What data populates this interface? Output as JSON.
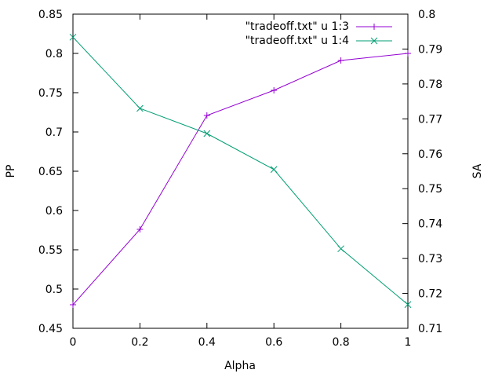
{
  "chart_data": {
    "type": "line",
    "title": "",
    "xlabel": "Alpha",
    "ylabel": "PP",
    "y2label": "SA",
    "xlim": [
      0,
      1
    ],
    "ylim": [
      0.45,
      0.85
    ],
    "y2lim": [
      0.71,
      0.8
    ],
    "x_ticks": [
      "0",
      "0.2",
      "0.4",
      "0.6",
      "0.8",
      "1"
    ],
    "y_ticks": [
      "0.45",
      "0.5",
      "0.55",
      "0.6",
      "0.65",
      "0.7",
      "0.75",
      "0.8",
      "0.85"
    ],
    "y2_ticks": [
      "0.71",
      "0.72",
      "0.73",
      "0.74",
      "0.75",
      "0.76",
      "0.77",
      "0.78",
      "0.79",
      "0.8"
    ],
    "grid": false,
    "legend_position": "top-right",
    "x": [
      0,
      0.2,
      0.4,
      0.6,
      0.8,
      1
    ],
    "series": [
      {
        "name": "\"tradeoff.txt\" u 1:3",
        "axis": "left",
        "marker": "plus",
        "color": "#9400d3",
        "values": [
          0.48,
          0.576,
          0.721,
          0.753,
          0.791,
          0.8
        ]
      },
      {
        "name": "\"tradeoff.txt\" u 1:4",
        "axis": "right",
        "marker": "cross",
        "color": "#009e73",
        "values": [
          0.7934,
          0.773,
          0.7658,
          0.7555,
          0.7328,
          0.7168
        ]
      }
    ]
  }
}
